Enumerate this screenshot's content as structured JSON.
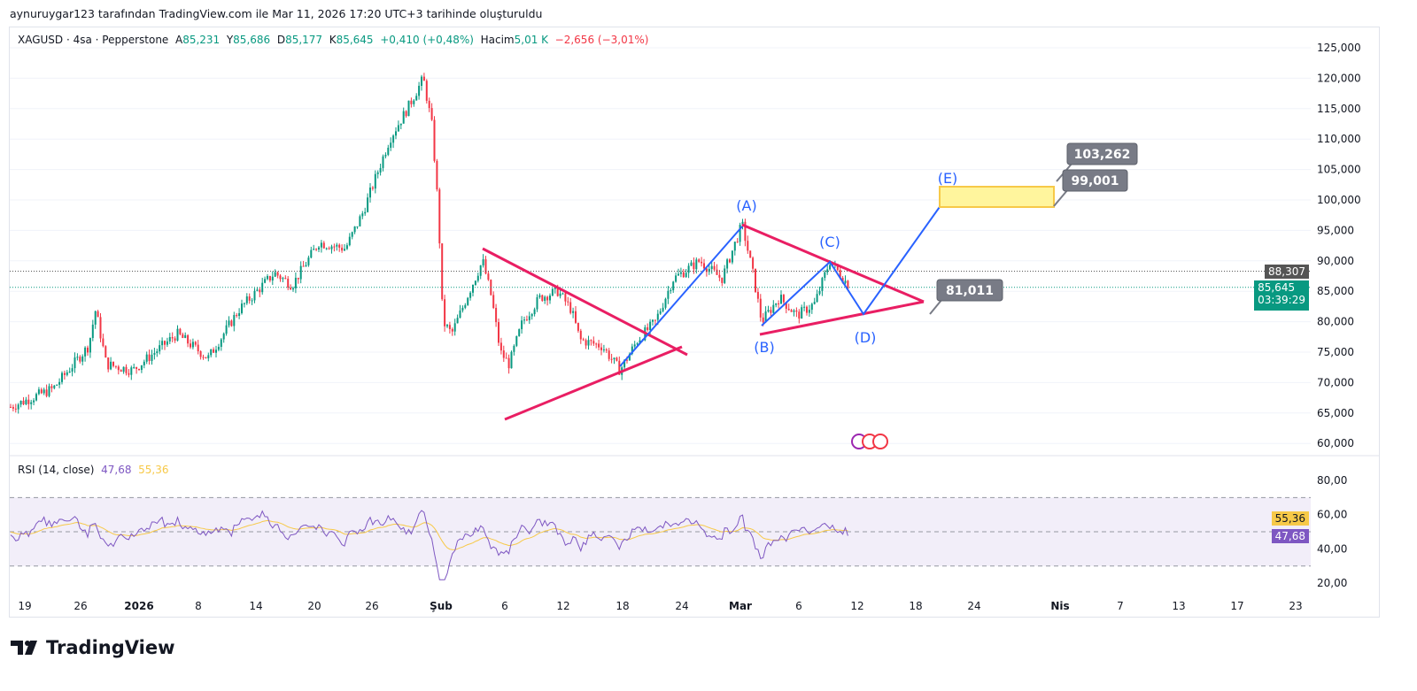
{
  "credit": "aynuruygar123 tarafından TradingView.com ile Mar 11, 2026 17:20 UTC+3 tarihinde oluşturuldu",
  "legend": {
    "symbol": "XAGUSD · 4sa · Pepperstone",
    "o_label": "A",
    "o": "85,231",
    "h_label": "Y",
    "h": "85,686",
    "l_label": "D",
    "l": "85,177",
    "c_label": "K",
    "c": "85,645",
    "change": "+0,410 (+0,48%)",
    "vol_label": "Hacim",
    "vol": "5,01 K",
    "vol_change": "−2,656 (−3,01%)"
  },
  "rsi": {
    "label": "RSI (14, close)",
    "value": "47,68",
    "ma": "55,36",
    "ticks": [
      "80,00",
      "60,00",
      "40,00",
      "20,00"
    ]
  },
  "price_axis": [
    "125,000",
    "120,000",
    "115,000",
    "110,000",
    "105,000",
    "100,000",
    "95,000",
    "90,000",
    "85,000",
    "80,000",
    "75,000",
    "70,000",
    "65,000",
    "60,000"
  ],
  "tags": {
    "prev": "88,307",
    "last": "85,645",
    "countdown": "03:39:29"
  },
  "time_axis": [
    "19",
    "26",
    "2026",
    "8",
    "14",
    "20",
    "26",
    "Şub",
    "6",
    "12",
    "18",
    "24",
    "Mar",
    "6",
    "12",
    "18",
    "24",
    "Nis",
    "7",
    "13",
    "17",
    "23"
  ],
  "annotations": {
    "A": "(A)",
    "B": "(B)",
    "C": "(C)",
    "D": "(D)",
    "E": "(E)",
    "t1": "103,262",
    "t2": "99,001",
    "t3": "81,011"
  },
  "brand": "TradingView",
  "colors": {
    "up": "#089981",
    "down": "#f23645",
    "triangle": "#e91e63",
    "wave": "#2962ff",
    "rsi": "#7e57c2",
    "rsi_ma": "#f7c948"
  },
  "chart_data": {
    "type": "candlestick",
    "title": "XAGUSD 4sa",
    "ylim": [
      60000,
      125000
    ],
    "x": [
      "Dec 18",
      "Dec 26",
      "Jan 1",
      "Jan 8",
      "Jan 14",
      "Jan 20",
      "Jan 26",
      "Jan 29",
      "Jan 31",
      "Feb 3",
      "Feb 6",
      "Feb 12",
      "Feb 18",
      "Feb 24",
      "Mar 2",
      "Mar 4",
      "Mar 9",
      "Mar 11"
    ],
    "close": [
      66000,
      72000,
      72000,
      76000,
      84000,
      92000,
      105000,
      120000,
      80000,
      88000,
      68000,
      84000,
      73000,
      87000,
      96000,
      80000,
      90000,
      85645
    ]
  }
}
